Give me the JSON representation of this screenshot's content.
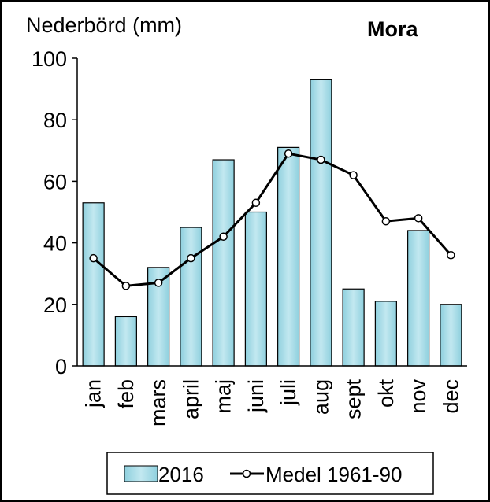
{
  "chart_data": {
    "type": "bar",
    "title": "Mora",
    "ylabel": "Nederbörd  (mm)",
    "xlabel": "",
    "ylim": [
      0,
      100
    ],
    "yticks": [
      0,
      20,
      40,
      60,
      80,
      100
    ],
    "grid": false,
    "legend_position": "bottom",
    "categories": [
      "jan",
      "feb",
      "mars",
      "april",
      "maj",
      "juni",
      "juli",
      "aug",
      "sept",
      "okt",
      "nov",
      "dec"
    ],
    "series": [
      {
        "name": "2016",
        "type": "bar",
        "color": "#a9dbe6",
        "values": [
          53,
          16,
          32,
          45,
          67,
          50,
          71,
          93,
          25,
          21,
          44,
          20
        ]
      },
      {
        "name": "Medel 1961-90",
        "type": "line",
        "color": "#000000",
        "values": [
          35,
          26,
          27,
          35,
          42,
          53,
          69,
          67,
          62,
          47,
          48,
          36
        ]
      }
    ]
  }
}
